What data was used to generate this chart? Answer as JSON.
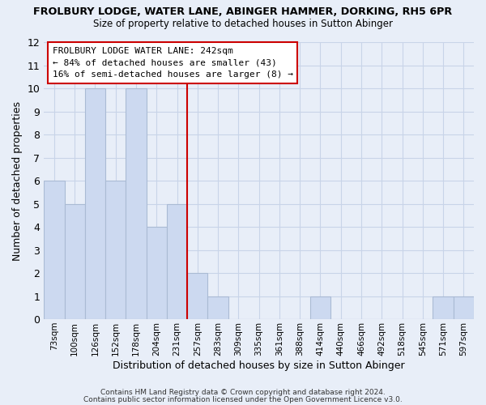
{
  "title": "FROLBURY LODGE, WATER LANE, ABINGER HAMMER, DORKING, RH5 6PR",
  "subtitle": "Size of property relative to detached houses in Sutton Abinger",
  "xlabel": "Distribution of detached houses by size in Sutton Abinger",
  "ylabel": "Number of detached properties",
  "bar_labels": [
    "73sqm",
    "100sqm",
    "126sqm",
    "152sqm",
    "178sqm",
    "204sqm",
    "231sqm",
    "257sqm",
    "283sqm",
    "309sqm",
    "335sqm",
    "361sqm",
    "388sqm",
    "414sqm",
    "440sqm",
    "466sqm",
    "492sqm",
    "518sqm",
    "545sqm",
    "571sqm",
    "597sqm"
  ],
  "bar_heights": [
    6,
    5,
    10,
    6,
    10,
    4,
    5,
    2,
    1,
    0,
    0,
    0,
    0,
    1,
    0,
    0,
    0,
    0,
    0,
    1,
    1
  ],
  "bar_color": "#ccd9f0",
  "bar_edge_color": "#aabbd4",
  "reference_line_color": "#cc0000",
  "ylim": [
    0,
    12
  ],
  "yticks": [
    0,
    1,
    2,
    3,
    4,
    5,
    6,
    7,
    8,
    9,
    10,
    11,
    12
  ],
  "annotation_title": "FROLBURY LODGE WATER LANE: 242sqm",
  "annotation_line1": "← 84% of detached houses are smaller (43)",
  "annotation_line2": "16% of semi-detached houses are larger (8) →",
  "annotation_box_color": "#ffffff",
  "annotation_box_edge": "#cc0000",
  "footer1": "Contains HM Land Registry data © Crown copyright and database right 2024.",
  "footer2": "Contains public sector information licensed under the Open Government Licence v3.0.",
  "background_color": "#e8eef8",
  "grid_color": "#c8d4e8"
}
